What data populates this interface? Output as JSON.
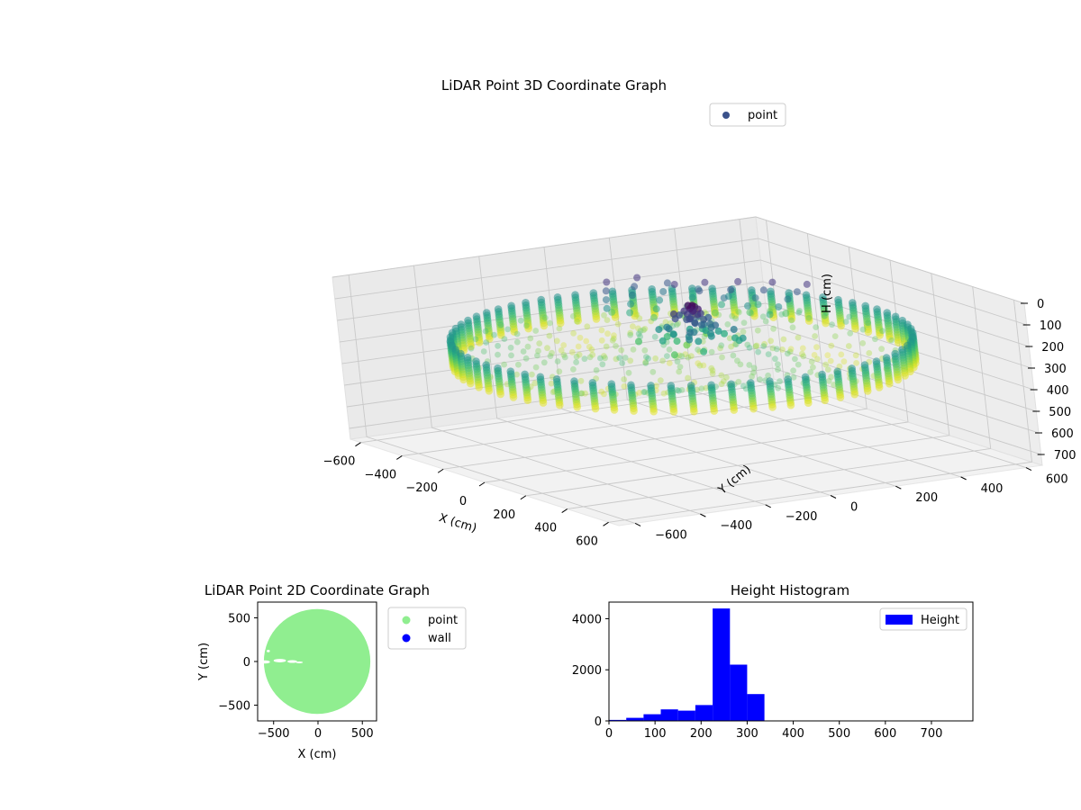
{
  "chart_data": [
    {
      "type": "scatter",
      "projection": "3d",
      "title": "LiDAR Point 3D Coordinate Graph",
      "xlabel": "X (cm)",
      "ylabel": "Y (cm)",
      "zlabel": "H (cm)",
      "xlim": [
        -650,
        650
      ],
      "ylim": [
        -650,
        650
      ],
      "zlim": [
        0,
        750
      ],
      "z_inverted": true,
      "xticks": [
        -600,
        -400,
        -200,
        0,
        200,
        400,
        600
      ],
      "yticks": [
        -600,
        -400,
        -200,
        0,
        200,
        400,
        600
      ],
      "zticks": [
        0,
        100,
        200,
        300,
        400,
        500,
        600,
        700
      ],
      "colormap": "viridis",
      "grid": true,
      "legend": {
        "position": "top-right",
        "entries": [
          {
            "label": "point",
            "color": "#3b528b"
          }
        ]
      },
      "series": [
        {
          "name": "point",
          "description_shape": "ring wall of radius about 600 cm spanning heights about 220 to 340 cm with an interior floor surface and a structure near the center reaching height about 100 cm"
        }
      ]
    },
    {
      "type": "scatter",
      "title": "LiDAR Point 2D Coordinate Graph",
      "xlabel": "X (cm)",
      "ylabel": "Y (cm)",
      "xlim": [
        -680,
        660
      ],
      "ylim": [
        -680,
        680
      ],
      "xticks": [
        -500,
        0,
        500
      ],
      "yticks": [
        -500,
        0,
        500
      ],
      "legend": {
        "position": "outside-right",
        "entries": [
          {
            "label": "point",
            "color": "#90ee90"
          },
          {
            "label": "wall",
            "color": "#0000ff"
          }
        ]
      },
      "series": [
        {
          "name": "point",
          "color": "#90ee90",
          "shape": "filled disc centered at (-10, 0) with radius about 600"
        },
        {
          "name": "wall",
          "color": "#0000ff",
          "points": []
        }
      ]
    },
    {
      "type": "bar",
      "subtype": "histogram",
      "title": "Height Histogram",
      "xlim": [
        0,
        790
      ],
      "ylim": [
        0,
        4650
      ],
      "xticks": [
        0,
        100,
        200,
        300,
        400,
        500,
        600,
        700
      ],
      "yticks": [
        0,
        2000,
        4000
      ],
      "legend": {
        "position": "top-right",
        "entries": [
          {
            "label": "Height",
            "color": "#0000ff"
          }
        ]
      },
      "series": [
        {
          "name": "Height",
          "color": "#0000ff",
          "bin_edges": [
            0,
            37.5,
            75,
            112.5,
            150,
            187.5,
            225,
            262.5,
            300,
            337.5,
            375,
            412.5,
            450,
            487.5,
            525,
            562.5,
            600,
            637.5,
            675,
            712.5,
            750
          ],
          "counts": [
            40,
            120,
            260,
            450,
            400,
            620,
            4400,
            2200,
            1050,
            0,
            0,
            0,
            0,
            0,
            0,
            0,
            0,
            0,
            0,
            0
          ]
        }
      ]
    }
  ]
}
